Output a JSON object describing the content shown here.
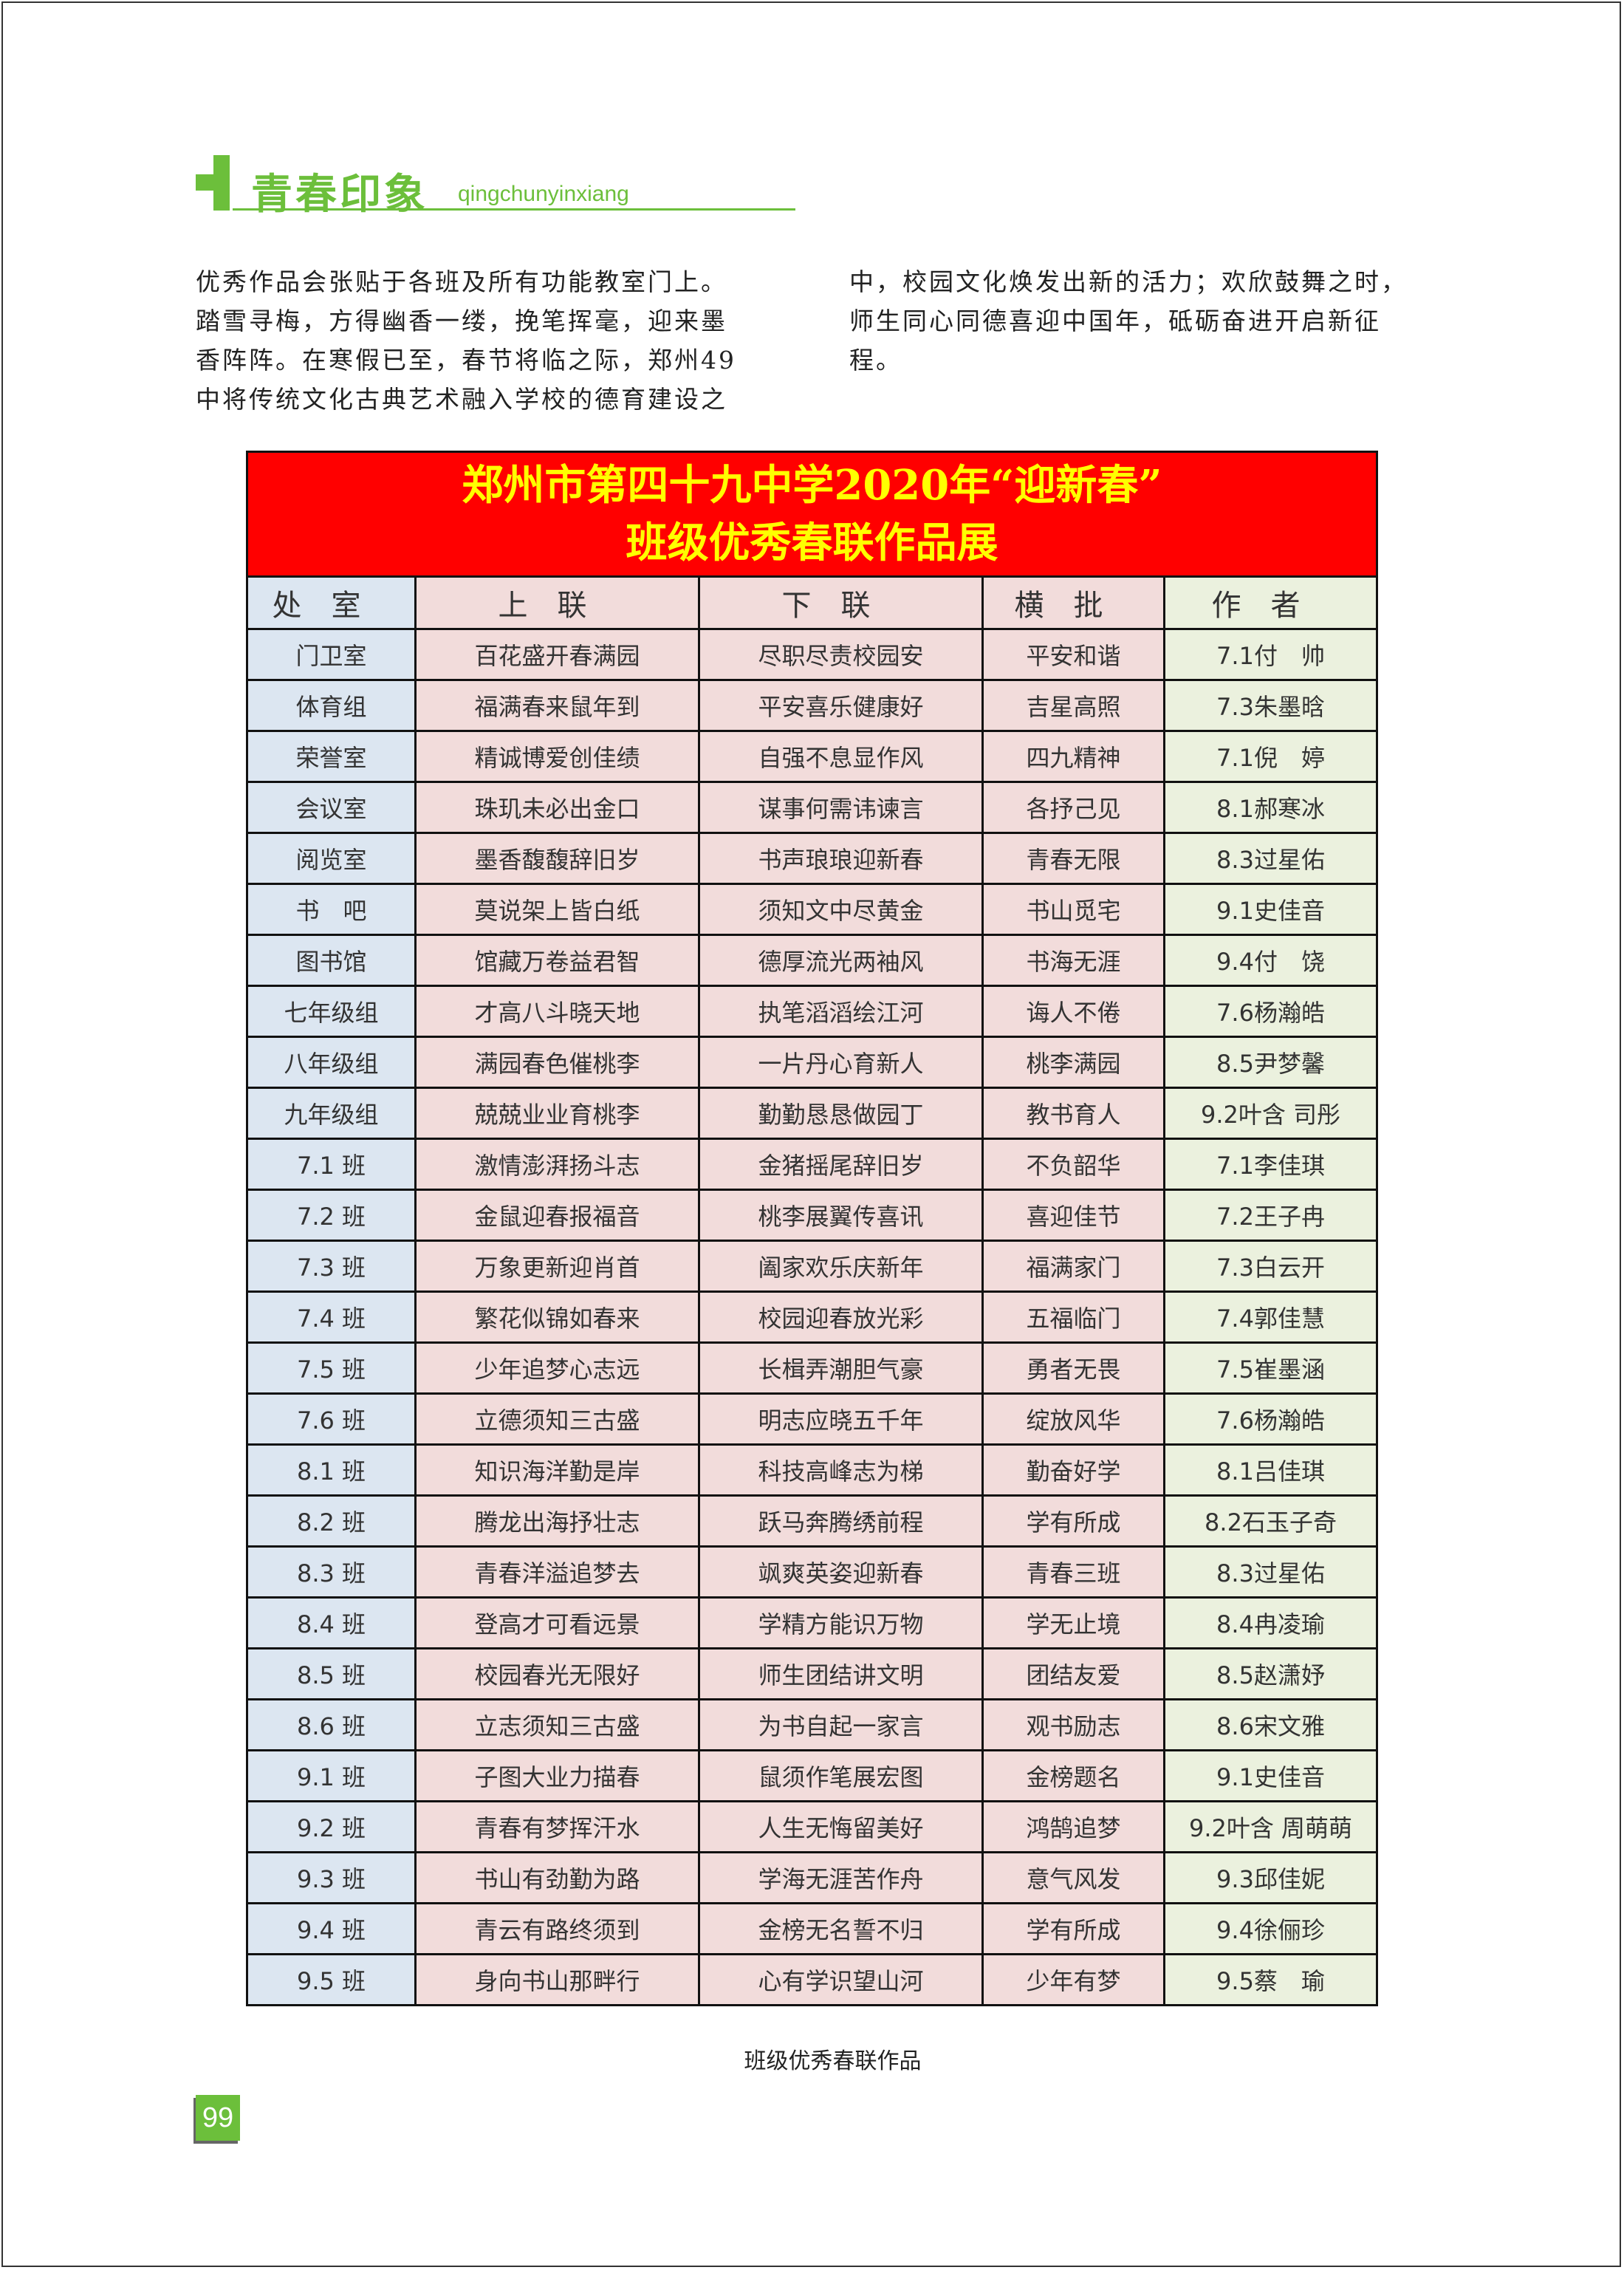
{
  "section": {
    "title": "青春印象",
    "pinyin": "qingchunyinxiang",
    "accent": "#6cbf3b"
  },
  "body_left": [
    "优秀作品会张贴于各班及所有功能教室门上。",
    "踏雪寻梅，方得幽香一缕，挽笔挥毫，迎来墨",
    "香阵阵。在寒假已至，春节将临之际，郑州49",
    "中将传统文化古典艺术融入学校的德育建设之"
  ],
  "body_right": [
    "中，校园文化焕发出新的活力；欢欣鼓舞之时，",
    "师生同心同德喜迎中国年，砥砺奋进开启新征",
    "程。"
  ],
  "table": {
    "title_line1": "郑州市第四十九中学2020年“迎新春”",
    "title_line2": "班级优秀春联作品展",
    "headers": [
      "处室",
      "上联",
      "下联",
      "横批",
      "作者"
    ],
    "rows": [
      [
        "门卫室",
        "百花盛开春满园",
        "尽职尽责校园安",
        "平安和谐",
        "7.1付　帅"
      ],
      [
        "体育组",
        "福满春来鼠年到",
        "平安喜乐健康好",
        "吉星高照",
        "7.3朱墨晗"
      ],
      [
        "荣誉室",
        "精诚博爱创佳绩",
        "自强不息显作风",
        "四九精神",
        "7.1倪　婷"
      ],
      [
        "会议室",
        "珠玑未必出金口",
        "谋事何需讳谏言",
        "各抒己见",
        "8.1郝寒冰"
      ],
      [
        "阅览室",
        "墨香馥馥辞旧岁",
        "书声琅琅迎新春",
        "青春无限",
        "8.3过星佑"
      ],
      [
        "书　吧",
        "莫说架上皆白纸",
        "须知文中尽黄金",
        "书山觅宅",
        "9.1史佳音"
      ],
      [
        "图书馆",
        "馆藏万卷益君智",
        "德厚流光两袖风",
        "书海无涯",
        "9.4付　饶"
      ],
      [
        "七年级组",
        "才高八斗晓天地",
        "执笔滔滔绘江河",
        "诲人不倦",
        "7.6杨瀚皓"
      ],
      [
        "八年级组",
        "满园春色催桃李",
        "一片丹心育新人",
        "桃李满园",
        "8.5尹梦馨"
      ],
      [
        "九年级组",
        "兢兢业业育桃李",
        "勤勤恳恳做园丁",
        "教书育人",
        "9.2叶含 司彤"
      ],
      [
        "7.1 班",
        "激情澎湃扬斗志",
        "金猪摇尾辞旧岁",
        "不负韶华",
        "7.1李佳琪"
      ],
      [
        "7.2 班",
        "金鼠迎春报福音",
        "桃李展翼传喜讯",
        "喜迎佳节",
        "7.2王子冉"
      ],
      [
        "7.3 班",
        "万象更新迎肖首",
        "阖家欢乐庆新年",
        "福满家门",
        "7.3白云开"
      ],
      [
        "7.4 班",
        "繁花似锦如春来",
        "校园迎春放光彩",
        "五福临门",
        "7.4郭佳慧"
      ],
      [
        "7.5 班",
        "少年追梦心志远",
        "长楫弄潮胆气豪",
        "勇者无畏",
        "7.5崔墨涵"
      ],
      [
        "7.6 班",
        "立德须知三古盛",
        "明志应晓五千年",
        "绽放风华",
        "7.6杨瀚皓"
      ],
      [
        "8.1 班",
        "知识海洋勤是岸",
        "科技高峰志为梯",
        "勤奋好学",
        "8.1吕佳琪"
      ],
      [
        "8.2 班",
        "腾龙出海抒壮志",
        "跃马奔腾绣前程",
        "学有所成",
        "8.2石玉子奇"
      ],
      [
        "8.3 班",
        "青春洋溢追梦去",
        "飒爽英姿迎新春",
        "青春三班",
        "8.3过星佑"
      ],
      [
        "8.4 班",
        "登高才可看远景",
        "学精方能识万物",
        "学无止境",
        "8.4冉凌瑜"
      ],
      [
        "8.5 班",
        "校园春光无限好",
        "师生团结讲文明",
        "团结友爱",
        "8.5赵潇妤"
      ],
      [
        "8.6 班",
        "立志须知三古盛",
        "为书自起一家言",
        "观书励志",
        "8.6宋文雅"
      ],
      [
        "9.1 班",
        "子图大业力描春",
        "鼠须作笔展宏图",
        "金榜题名",
        "9.1史佳音"
      ],
      [
        "9.2 班",
        "青春有梦挥汗水",
        "人生无悔留美好",
        "鸿鹄追梦",
        "9.2叶含 周萌萌"
      ],
      [
        "9.3 班",
        "书山有劲勤为路",
        "学海无涯苦作舟",
        "意气风发",
        "9.3邱佳妮"
      ],
      [
        "9.4 班",
        "青云有路终须到",
        "金榜无名誓不归",
        "学有所成",
        "9.4徐俪珍"
      ],
      [
        "9.5 班",
        "身向书山那畔行",
        "心有学识望山河",
        "少年有梦",
        "9.5蔡　瑜"
      ]
    ],
    "colors": {
      "title_bg": "#ff0000",
      "title_text": "#ffff00",
      "col1": "#dce6f1",
      "middle": "#f2dcdb",
      "author": "#ebf1de"
    }
  },
  "caption": "班级优秀春联作品",
  "page_number": "99"
}
